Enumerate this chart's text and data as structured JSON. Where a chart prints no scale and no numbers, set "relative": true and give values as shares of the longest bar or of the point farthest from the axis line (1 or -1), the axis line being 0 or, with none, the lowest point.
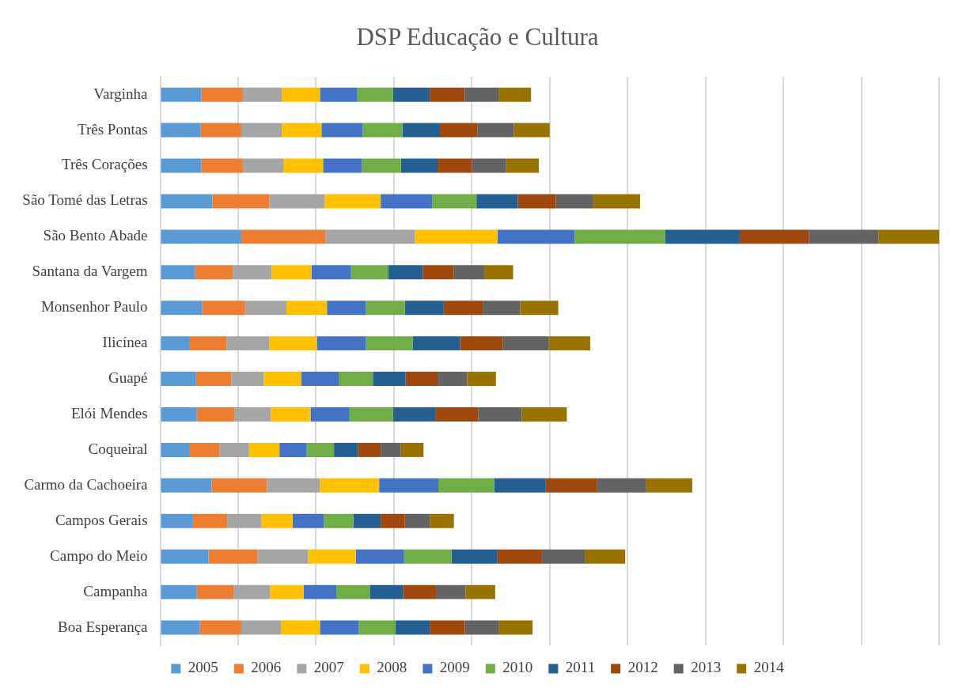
{
  "chart_data": {
    "type": "bar",
    "orientation": "horizontal",
    "stacked": true,
    "relative": true,
    "title": "DSP Educação e Cultura",
    "grid": "x",
    "legend": "bottom",
    "categories": [
      "Varginha",
      "Três Pontas",
      "Três Corações",
      "São Tomé das Letras",
      "São Bento Abade",
      "Santana da Vargem",
      "Monsenhor Paulo",
      "Ilicínea",
      "Guapé",
      "Elói Mendes",
      "Coqueiral",
      "Carmo da Cachoeira",
      "Campos Gerais",
      "Campo do Meio",
      "Campanha",
      "Boa Esperança"
    ],
    "series": [
      {
        "name": "2005",
        "color": "#5b9bd5",
        "values": [
          0.053,
          0.052,
          0.053,
          0.067,
          0.104,
          0.045,
          0.054,
          0.038,
          0.046,
          0.047,
          0.038,
          0.066,
          0.042,
          0.062,
          0.047,
          0.051
        ]
      },
      {
        "name": "2006",
        "color": "#ed7d31",
        "values": [
          0.053,
          0.052,
          0.053,
          0.073,
          0.108,
          0.048,
          0.055,
          0.047,
          0.045,
          0.048,
          0.038,
          0.071,
          0.044,
          0.063,
          0.047,
          0.053
        ]
      },
      {
        "name": "2007",
        "color": "#a5a5a5",
        "values": [
          0.05,
          0.052,
          0.052,
          0.071,
          0.115,
          0.05,
          0.053,
          0.055,
          0.042,
          0.047,
          0.038,
          0.068,
          0.044,
          0.065,
          0.047,
          0.051
        ]
      },
      {
        "name": "2008",
        "color": "#ffc000",
        "values": [
          0.049,
          0.051,
          0.051,
          0.072,
          0.106,
          0.051,
          0.052,
          0.061,
          0.048,
          0.051,
          0.039,
          0.076,
          0.04,
          0.061,
          0.043,
          0.05
        ]
      },
      {
        "name": "2009",
        "color": "#4472c4",
        "values": [
          0.048,
          0.053,
          0.05,
          0.066,
          0.099,
          0.051,
          0.05,
          0.063,
          0.048,
          0.05,
          0.035,
          0.076,
          0.04,
          0.062,
          0.042,
          0.05
        ]
      },
      {
        "name": "2010",
        "color": "#70ad47",
        "values": [
          0.046,
          0.051,
          0.05,
          0.057,
          0.116,
          0.048,
          0.05,
          0.06,
          0.044,
          0.056,
          0.035,
          0.072,
          0.038,
          0.061,
          0.043,
          0.047
        ]
      },
      {
        "name": "2011",
        "color": "#255e91",
        "values": [
          0.047,
          0.048,
          0.047,
          0.053,
          0.096,
          0.044,
          0.05,
          0.061,
          0.042,
          0.054,
          0.031,
          0.066,
          0.035,
          0.059,
          0.043,
          0.044
        ]
      },
      {
        "name": "2012",
        "color": "#9e480e",
        "values": [
          0.045,
          0.048,
          0.044,
          0.049,
          0.089,
          0.04,
          0.05,
          0.055,
          0.041,
          0.055,
          0.029,
          0.066,
          0.031,
          0.057,
          0.042,
          0.045
        ]
      },
      {
        "name": "2013",
        "color": "#636363",
        "values": [
          0.044,
          0.047,
          0.044,
          0.048,
          0.089,
          0.039,
          0.048,
          0.059,
          0.038,
          0.056,
          0.026,
          0.063,
          0.032,
          0.055,
          0.038,
          0.044
        ]
      },
      {
        "name": "2014",
        "color": "#997300",
        "values": [
          0.041,
          0.046,
          0.042,
          0.06,
          0.078,
          0.037,
          0.049,
          0.053,
          0.037,
          0.058,
          0.029,
          0.059,
          0.031,
          0.052,
          0.038,
          0.043
        ]
      }
    ]
  }
}
